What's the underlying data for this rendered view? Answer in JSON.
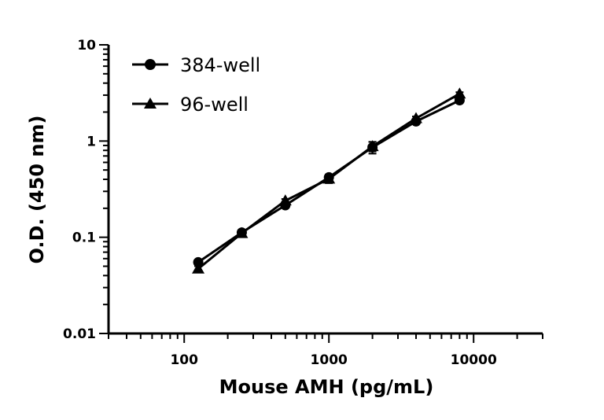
{
  "chart_data": {
    "type": "line",
    "xlabel": "Mouse AMH (pg/mL)",
    "ylabel": "O.D. (450 nm)",
    "xscale": "log",
    "yscale": "log",
    "xlim": [
      30,
      30000
    ],
    "ylim": [
      0.01,
      10
    ],
    "x_tick_labels": [
      "100",
      "1000",
      "10000"
    ],
    "y_tick_labels": [
      "0.01",
      "0.1",
      "1",
      "10"
    ],
    "grid": false,
    "legend_position": "top-left",
    "x": [
      125,
      250,
      500,
      1000,
      2000,
      4000,
      8000
    ],
    "series": [
      {
        "name": "384-well",
        "marker": "circle",
        "color": "#000000",
        "values": [
          0.055,
          0.112,
          0.215,
          0.42,
          0.86,
          1.6,
          2.65
        ],
        "errors": [
          0.003,
          0.005,
          0.01,
          0.03,
          0.12,
          0.08,
          0.15
        ]
      },
      {
        "name": "96-well",
        "marker": "triangle",
        "color": "#000000",
        "values": [
          0.047,
          0.11,
          0.24,
          0.405,
          0.88,
          1.72,
          3.1
        ],
        "errors": [
          0.003,
          0.005,
          0.01,
          0.04,
          0.1,
          0.08,
          0.12
        ]
      }
    ]
  }
}
